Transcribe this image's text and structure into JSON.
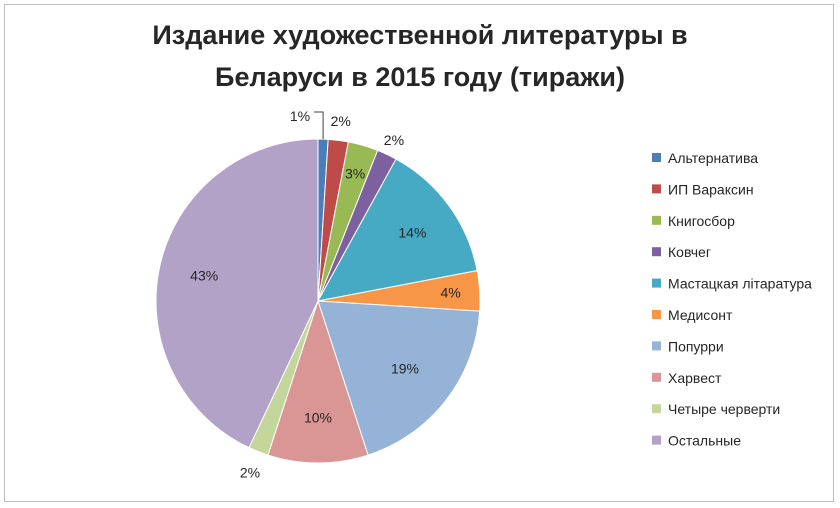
{
  "chart_data": {
    "type": "pie",
    "title_lines": [
      "Издание художественной литературы в",
      "Беларуси в 2015 году (тиражи)"
    ],
    "categories": [
      "Альтернатива",
      "ИП Вараксин",
      "Книгосбор",
      "Ковчег",
      "Мастацкая літаратура",
      "Медисонт",
      "Попурри",
      "Харвест",
      "Четыре черверти",
      "Остальные"
    ],
    "values": [
      1,
      2,
      3,
      2,
      14,
      4,
      19,
      10,
      2,
      43
    ],
    "labels": [
      "1%",
      "2%",
      "3%",
      "2%",
      "14%",
      "4%",
      "19%",
      "10%",
      "2%",
      "43%"
    ],
    "colors": [
      "#4a7ebb",
      "#be4b48",
      "#98b954",
      "#7d60a0",
      "#46aac5",
      "#f79646",
      "#95b3d7",
      "#d99694",
      "#c3d69b",
      "#b3a2c7"
    ],
    "legend_position": "right"
  }
}
